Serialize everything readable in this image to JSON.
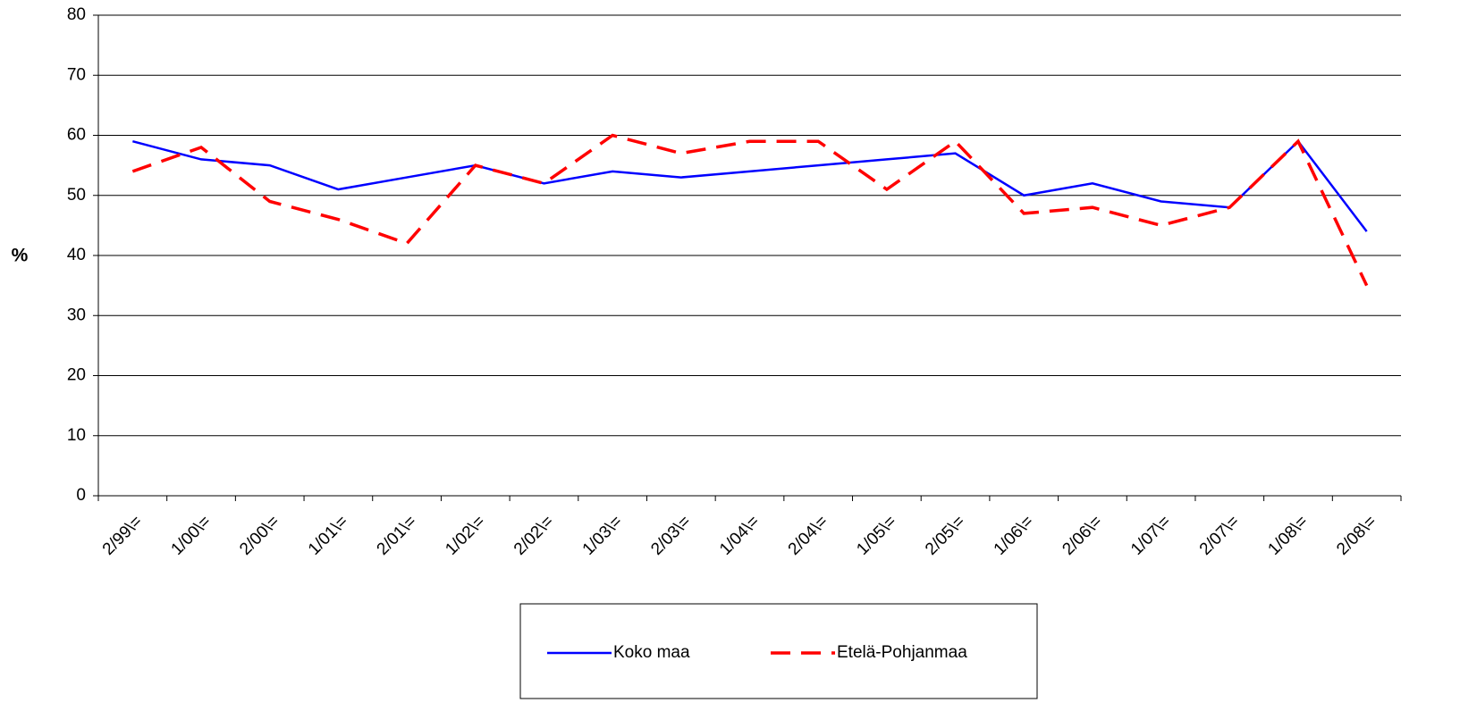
{
  "chart_data": {
    "type": "line",
    "y_label": "%",
    "categories": [
      "2/99\\=",
      "1/00\\=",
      "2/00\\=",
      "1/01\\=",
      "2/01\\=",
      "1/02\\=",
      "2/02\\=",
      "1/03\\=",
      "2/03\\=",
      "1/04\\=",
      "2/04\\=",
      "1/05\\=",
      "2/05\\=",
      "1/06\\=",
      "2/06\\=",
      "1/07\\=",
      "2/07\\=",
      "1/08\\=",
      "2/08\\="
    ],
    "series": [
      {
        "name": "Koko maa",
        "color": "#0000ff",
        "values": [
          59,
          56,
          55,
          51,
          53,
          55,
          52,
          54,
          53,
          54,
          55,
          56,
          57,
          50,
          52,
          49,
          48,
          59,
          44
        ]
      },
      {
        "name": "Etelä-Pohjanmaa",
        "color": "#ff0000",
        "values": [
          54,
          58,
          49,
          46,
          42,
          55,
          52,
          60,
          57,
          59,
          59,
          51,
          59,
          47,
          48,
          45,
          48,
          59,
          35
        ]
      }
    ],
    "ylim": [
      0,
      80
    ],
    "yticks": [
      0,
      10,
      20,
      30,
      40,
      50,
      60,
      70,
      80
    ],
    "grid": true,
    "legend": "bottom"
  }
}
